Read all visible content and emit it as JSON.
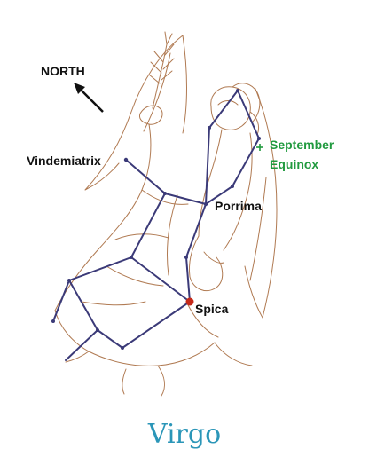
{
  "colors": {
    "figure": "#b07a52",
    "constellation": "#3b3a78",
    "star": "#3b3a78",
    "spica": "#c62a1a",
    "equinox": "#219a3f",
    "caption": "#2b96b8",
    "text": "#111111"
  },
  "labels": {
    "north": "NORTH",
    "vindemiatrix": "Vindemiatrix",
    "porrima": "Porrima",
    "spica": "Spica",
    "equinox_line1": "September",
    "equinox_line2": "Equinox"
  },
  "caption": "Virgo",
  "icons": {
    "north_arrow": "arrow-icon"
  }
}
